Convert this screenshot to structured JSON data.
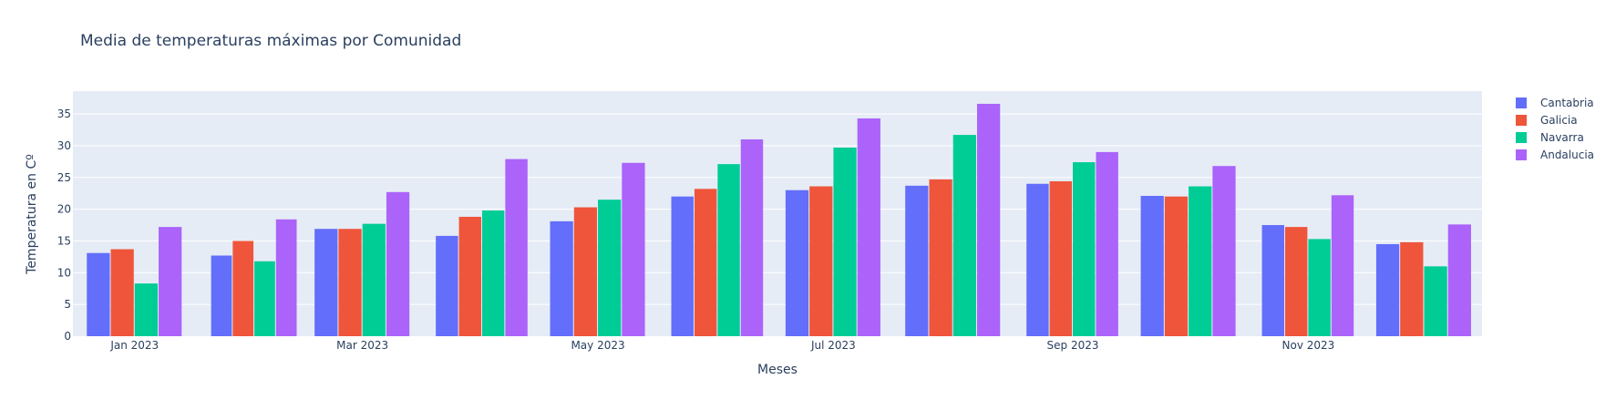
{
  "chart_data": {
    "type": "bar",
    "title": "Media de temperaturas máximas por Comunidad",
    "xlabel": "Meses",
    "ylabel": "Temperatura en Cº",
    "categories": [
      "2023-01",
      "2023-02",
      "2023-03",
      "2023-04",
      "2023-05",
      "2023-06",
      "2023-07",
      "2023-08",
      "2023-09",
      "2023-10",
      "2023-11",
      "2023-12"
    ],
    "x_tick_labels": [
      "Jan 2023",
      "Mar 2023",
      "May 2023",
      "Jul 2023",
      "Sep 2023",
      "Nov 2023"
    ],
    "y_ticks": [
      0,
      5,
      10,
      15,
      20,
      25,
      30,
      35
    ],
    "ylim": [
      0,
      38.6
    ],
    "grid": true,
    "legend_position": "right",
    "background": "#e5ecf6",
    "series": [
      {
        "name": "Cantabria",
        "color": "#636efa",
        "values": [
          13.1,
          12.7,
          16.9,
          15.8,
          18.1,
          22.0,
          23.0,
          23.7,
          24.0,
          22.1,
          17.5,
          14.5
        ]
      },
      {
        "name": "Galicia",
        "color": "#ef553b",
        "values": [
          13.7,
          15.0,
          16.9,
          18.8,
          20.3,
          23.2,
          23.6,
          24.7,
          24.4,
          22.0,
          17.2,
          14.8
        ]
      },
      {
        "name": "Navarra",
        "color": "#00cc96",
        "values": [
          8.3,
          11.8,
          17.7,
          19.8,
          21.5,
          27.1,
          29.7,
          31.7,
          27.4,
          23.6,
          15.3,
          11.0
        ]
      },
      {
        "name": "Andalucia",
        "color": "#ab63fa",
        "values": [
          17.2,
          18.4,
          22.7,
          27.9,
          27.3,
          31.0,
          34.3,
          36.6,
          29.0,
          26.8,
          22.2,
          17.6
        ]
      }
    ]
  }
}
